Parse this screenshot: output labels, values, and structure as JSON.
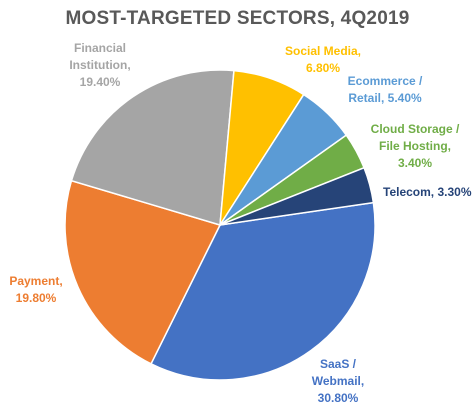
{
  "chart_data": {
    "type": "pie",
    "title": "MOST-TARGETED SECTORS, 4Q2019",
    "slices": [
      {
        "label": [
          "SaaS /",
          "Webmail,",
          "30.80%"
        ],
        "name": "SaaS / Webmail",
        "value": 30.8,
        "color": "#4472C4"
      },
      {
        "label": [
          "Payment,",
          "19.80%"
        ],
        "name": "Payment",
        "value": 19.8,
        "color": "#ED7D31"
      },
      {
        "label": [
          "Financial",
          "Institution,",
          "19.40%"
        ],
        "name": "Financial Institution",
        "value": 19.4,
        "color": "#A5A5A5"
      },
      {
        "label": [
          "Social Media,",
          "6.80%"
        ],
        "name": "Social Media",
        "value": 6.8,
        "color": "#FFC000"
      },
      {
        "label": [
          "Ecommerce /",
          "Retail, 5.40%"
        ],
        "name": "Ecommerce / Retail",
        "value": 5.4,
        "color": "#5B9BD5"
      },
      {
        "label": [
          "Cloud Storage /",
          "File Hosting,",
          "3.40%"
        ],
        "name": "Cloud Storage / File Hosting",
        "value": 3.4,
        "color": "#70AD47"
      },
      {
        "label": [
          "Telecom, 3.30%"
        ],
        "name": "Telecom",
        "value": 3.3,
        "color": "#264478"
      }
    ]
  }
}
